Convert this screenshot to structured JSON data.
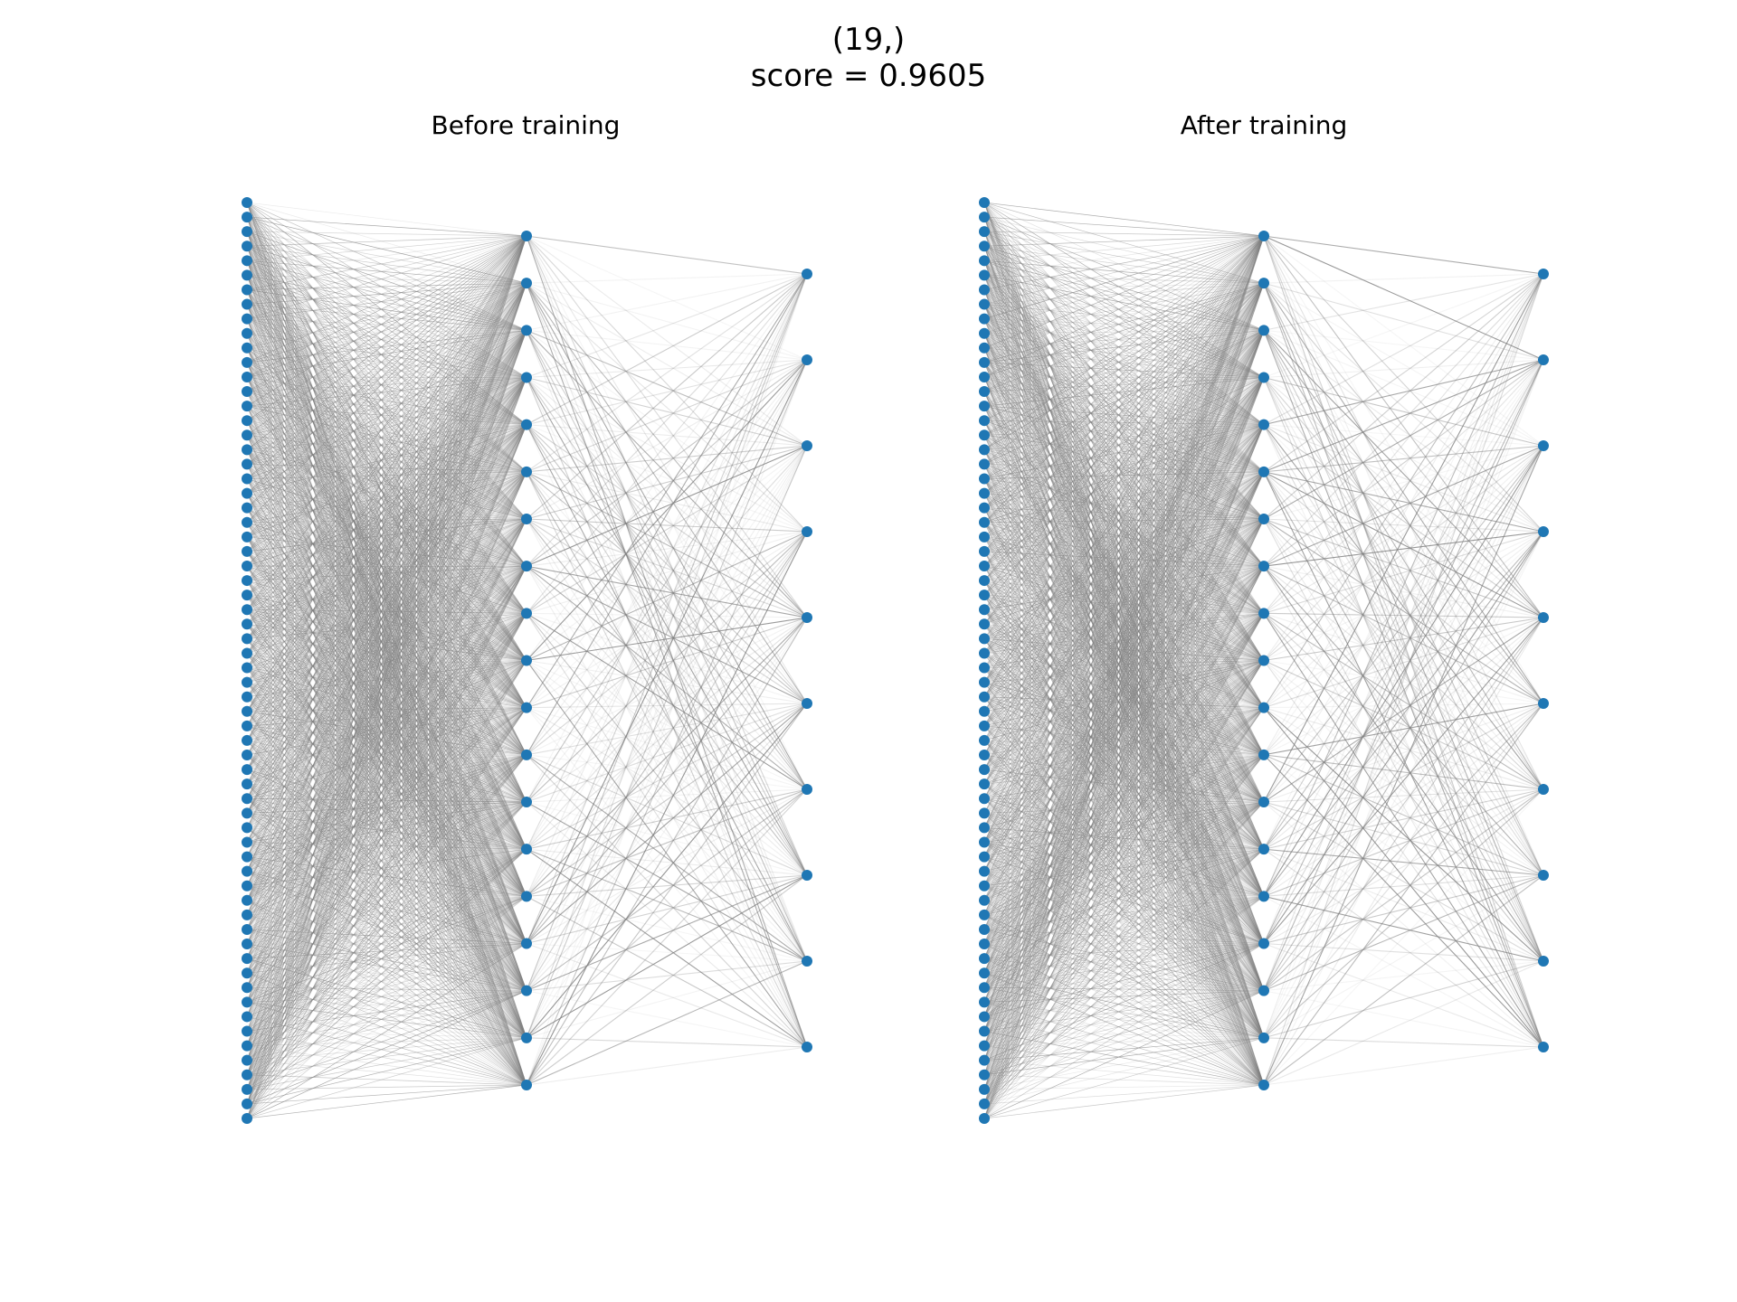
{
  "figure": {
    "suptitle_line1": "(19,)",
    "suptitle_line2": "score = 0.9605"
  },
  "colors": {
    "node": "#1f77b4",
    "edge": "#808080",
    "background": "#ffffff"
  },
  "panels": [
    {
      "title": "Before training",
      "layers": [
        64,
        19,
        10
      ]
    },
    {
      "title": "After training",
      "layers": [
        64,
        19,
        10
      ]
    }
  ]
}
